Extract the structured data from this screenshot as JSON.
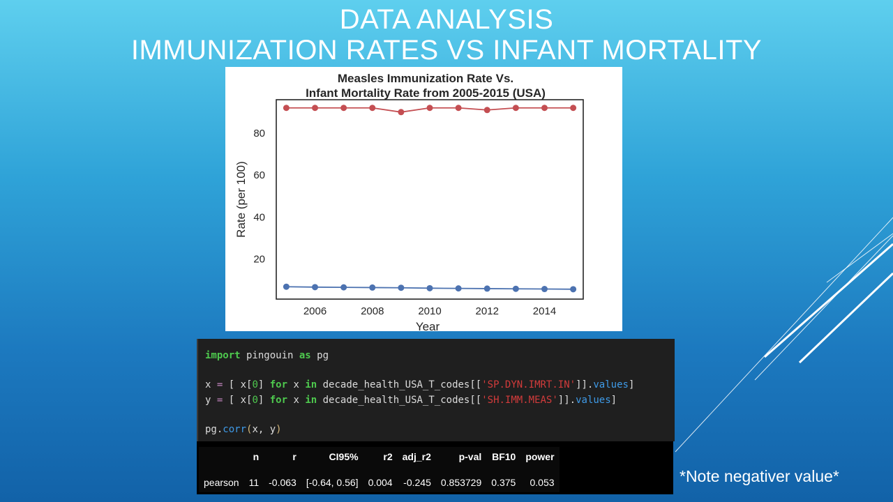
{
  "slide": {
    "title_line1": "DATA ANALYSIS",
    "title_line2": "IMMUNIZATION RATES VS INFANT MORTALITY",
    "note": "*Note negativer value*"
  },
  "chart_data": {
    "type": "line",
    "title_line1": "Measles Immunization Rate Vs.",
    "title_line2": "Infant Mortality Rate from 2005-2015 (USA)",
    "xlabel": "Year",
    "ylabel": "Rate (per 100)",
    "x": [
      2005,
      2006,
      2007,
      2008,
      2009,
      2010,
      2011,
      2012,
      2013,
      2014,
      2015
    ],
    "xticks": [
      2006,
      2008,
      2010,
      2012,
      2014
    ],
    "yticks": [
      20,
      40,
      60,
      80
    ],
    "xlim": [
      2004.65,
      2015.35
    ],
    "ylim": [
      1,
      95.9
    ],
    "grid": false,
    "series": [
      {
        "color": "#c44e52",
        "values": [
          92,
          92,
          92,
          92,
          90,
          92,
          92,
          91,
          92,
          92,
          92
        ]
      },
      {
        "color": "#4c72b0",
        "values": [
          6.9,
          6.7,
          6.6,
          6.5,
          6.4,
          6.2,
          6.1,
          6.0,
          5.9,
          5.8,
          5.7
        ]
      }
    ]
  },
  "code": {
    "line1": {
      "kw1": "import",
      "t1": " pingouin ",
      "kw2": "as",
      "t2": " pg"
    },
    "line2": {
      "t1": "x ",
      "op1": "=",
      "t2": " [ x[",
      "n1": "0",
      "t3": "] ",
      "kw1": "for",
      "t4": " x ",
      "kw2": "in",
      "t5": " decade_health_USA_T_codes[[",
      "s1": "'SP.DYN.IMRT.IN'",
      "t6": "]].",
      "a1": "values",
      "t7": "]"
    },
    "line3": {
      "t1": "y ",
      "op1": "=",
      "t2": " [ x[",
      "n1": "0",
      "t3": "] ",
      "kw1": "for",
      "t4": " x ",
      "kw2": "in",
      "t5": " decade_health_USA_T_codes[[",
      "s1": "'SH.IMM.MEAS'",
      "t6": "]].",
      "a1": "values",
      "t7": "]"
    },
    "line4": {
      "t1": "pg.",
      "f1": "corr",
      "p1": "(",
      "t2": "x, y",
      "p2": ")"
    }
  },
  "output_table": {
    "headers": [
      "",
      "n",
      "r",
      "CI95%",
      "r2",
      "adj_r2",
      "p-val",
      "BF10",
      "power"
    ],
    "row": [
      "pearson",
      "11",
      "-0.063",
      "[-0.64, 0.56]",
      "0.004",
      "-0.245",
      "0.853729",
      "0.375",
      "0.053"
    ]
  },
  "colors": {
    "background_top": "#5ecfee",
    "background_bottom": "#1262a8",
    "code_bg": "#1f1f1f",
    "keyword": "#4ec94e",
    "string": "#d23b3b"
  }
}
